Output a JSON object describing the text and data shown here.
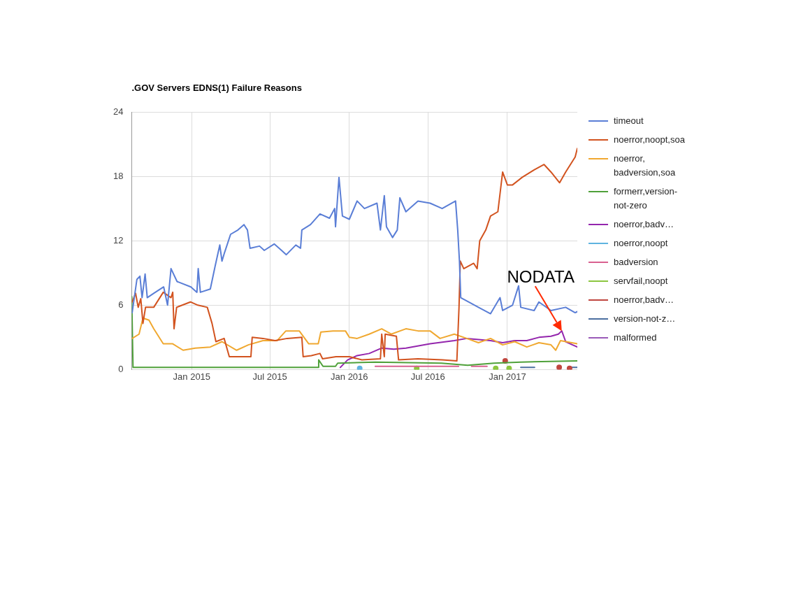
{
  "chart_data": {
    "type": "line",
    "title": ".GOV Servers EDNS(1) Failure Reasons",
    "xlim": [
      "2014-08-15",
      "2017-06-12"
    ],
    "xticks": [
      {
        "value": "2015-01-01",
        "label": "Jan 2015"
      },
      {
        "value": "2015-07-01",
        "label": "Jul 2015"
      },
      {
        "value": "2016-01-01",
        "label": "Jan 2016"
      },
      {
        "value": "2016-07-01",
        "label": "Jul 2016"
      },
      {
        "value": "2017-01-01",
        "label": "Jan 2017"
      }
    ],
    "ylim": [
      0,
      24
    ],
    "yticks": [
      0,
      6,
      12,
      18,
      24
    ],
    "grid": true,
    "legend": "right",
    "marker": "none",
    "annotations": [
      {
        "text": "NODATA",
        "x": "2017-05-07",
        "y": 3.6
      }
    ],
    "series": [
      {
        "name": "timeout",
        "color": "#5a7ed6",
        "x": [
          "2014-08-16",
          "2014-08-27",
          "2014-09-03",
          "2014-09-08",
          "2014-09-15",
          "2014-09-20",
          "2014-10-05",
          "2014-10-28",
          "2014-11-06",
          "2014-11-14",
          "2014-11-28",
          "2014-12-30",
          "2015-01-13",
          "2015-01-16",
          "2015-01-21",
          "2015-02-13",
          "2015-02-24",
          "2015-03-07",
          "2015-03-12",
          "2015-03-18",
          "2015-04-01",
          "2015-04-18",
          "2015-05-02",
          "2015-05-10",
          "2015-05-16",
          "2015-06-07",
          "2015-06-18",
          "2015-07-11",
          "2015-07-28",
          "2015-08-08",
          "2015-08-30",
          "2015-09-10",
          "2015-09-13",
          "2015-10-03",
          "2015-10-25",
          "2015-11-16",
          "2015-11-28",
          "2015-11-30",
          "2015-12-08",
          "2015-12-16",
          "2016-01-01",
          "2016-01-19",
          "2016-02-05",
          "2016-03-05",
          "2016-03-13",
          "2016-03-22",
          "2016-03-27",
          "2016-04-10",
          "2016-04-21",
          "2016-04-27",
          "2016-05-11",
          "2016-06-08",
          "2016-07-06",
          "2016-08-03",
          "2016-09-03",
          "2016-09-08",
          "2016-09-12",
          "2016-09-15",
          "2016-10-03",
          "2016-10-26",
          "2016-11-23",
          "2016-12-15",
          "2016-12-21",
          "2017-01-13",
          "2017-01-27",
          "2017-02-01",
          "2017-03-04",
          "2017-03-15",
          "2017-04-12",
          "2017-05-16",
          "2017-06-07",
          "2017-06-12"
        ],
        "values": [
          5.3,
          8.4,
          8.7,
          6.7,
          8.9,
          6.7,
          7.1,
          7.7,
          6.0,
          9.4,
          8.2,
          7.7,
          7.2,
          9.4,
          7.2,
          7.5,
          9.6,
          11.6,
          10.1,
          10.9,
          12.6,
          13.0,
          13.5,
          13.0,
          11.3,
          11.5,
          11.1,
          11.7,
          11.1,
          10.7,
          11.6,
          11.3,
          13.0,
          13.5,
          14.5,
          14.1,
          15.0,
          13.3,
          17.9,
          14.3,
          14.0,
          15.7,
          15.0,
          15.5,
          13.0,
          16.2,
          13.3,
          12.3,
          13.0,
          16.0,
          14.7,
          15.7,
          15.5,
          15.0,
          15.7,
          13.0,
          10.1,
          6.7,
          6.3,
          5.8,
          5.2,
          6.7,
          5.5,
          6.0,
          7.8,
          5.8,
          5.5,
          6.3,
          5.5,
          5.8,
          5.3,
          5.4
        ]
      },
      {
        "name": "noerror,noopt,soa",
        "color": "#d2531f",
        "x": [
          "2014-08-16",
          "2014-08-24",
          "2014-08-30",
          "2014-09-05",
          "2014-09-10",
          "2014-09-16",
          "2014-10-05",
          "2014-10-27",
          "2014-11-14",
          "2014-11-18",
          "2014-11-21",
          "2014-11-27",
          "2014-12-29",
          "2015-01-15",
          "2015-02-06",
          "2015-02-17",
          "2015-02-26",
          "2015-03-17",
          "2015-03-29",
          "2015-04-20",
          "2015-05-18",
          "2015-05-21",
          "2015-06-15",
          "2015-07-13",
          "2015-08-10",
          "2015-09-13",
          "2015-09-16",
          "2015-10-05",
          "2015-10-25",
          "2015-10-31",
          "2015-12-01",
          "2015-12-11",
          "2016-01-01",
          "2016-01-30",
          "2016-03-13",
          "2016-03-16",
          "2016-03-22",
          "2016-03-24",
          "2016-04-19",
          "2016-04-24",
          "2016-06-08",
          "2016-08-03",
          "2016-09-06",
          "2016-09-11",
          "2016-09-14",
          "2016-09-22",
          "2016-10-15",
          "2016-10-23",
          "2016-10-29",
          "2016-11-12",
          "2016-11-23",
          "2016-12-10",
          "2016-12-21",
          "2017-01-01",
          "2017-01-13",
          "2017-02-04",
          "2017-03-04",
          "2017-03-27",
          "2017-04-12",
          "2017-05-02",
          "2017-05-16",
          "2017-06-07",
          "2017-06-12"
        ],
        "values": [
          6.3,
          7.1,
          5.8,
          6.6,
          4.3,
          5.8,
          5.8,
          7.2,
          6.7,
          7.2,
          3.8,
          5.8,
          6.3,
          6.0,
          5.8,
          4.3,
          2.6,
          2.9,
          1.2,
          1.2,
          1.2,
          3.0,
          2.9,
          2.7,
          2.9,
          3.0,
          1.2,
          1.3,
          1.5,
          1.0,
          1.2,
          1.2,
          1.2,
          0.9,
          1.0,
          3.3,
          1.2,
          3.3,
          3.1,
          0.9,
          1.0,
          0.9,
          0.8,
          5.8,
          10.1,
          9.4,
          9.9,
          9.4,
          12.0,
          13.0,
          14.3,
          14.7,
          18.4,
          17.2,
          17.2,
          17.9,
          18.6,
          19.1,
          18.4,
          17.4,
          18.4,
          19.8,
          20.6
        ]
      },
      {
        "name": "noerror,badversion,soa",
        "color": "#f0a830",
        "x": [
          "2014-08-16",
          "2014-09-01",
          "2014-09-10",
          "2014-09-24",
          "2014-10-05",
          "2014-10-27",
          "2014-11-18",
          "2014-12-12",
          "2015-01-09",
          "2015-02-13",
          "2015-03-12",
          "2015-04-15",
          "2015-05-12",
          "2015-06-15",
          "2015-07-18",
          "2015-08-07",
          "2015-09-07",
          "2015-09-29",
          "2015-10-21",
          "2015-10-27",
          "2015-11-24",
          "2015-12-23",
          "2016-01-01",
          "2016-01-19",
          "2016-02-16",
          "2016-03-16",
          "2016-04-07",
          "2016-05-11",
          "2016-06-08",
          "2016-07-06",
          "2016-07-29",
          "2016-08-31",
          "2016-09-29",
          "2016-10-26",
          "2016-11-23",
          "2016-12-21",
          "2017-01-18",
          "2017-02-15",
          "2017-03-15",
          "2017-04-12",
          "2017-04-23",
          "2017-05-04",
          "2017-06-12"
        ],
        "values": [
          2.9,
          3.3,
          4.8,
          4.6,
          3.8,
          2.4,
          2.4,
          1.8,
          2.0,
          2.1,
          2.6,
          1.8,
          2.3,
          2.7,
          2.7,
          3.6,
          3.6,
          2.4,
          2.4,
          3.5,
          3.6,
          3.6,
          3.0,
          2.9,
          3.3,
          3.8,
          3.3,
          3.8,
          3.6,
          3.6,
          2.9,
          3.3,
          2.9,
          2.5,
          2.9,
          2.3,
          2.6,
          2.1,
          2.5,
          2.3,
          1.8,
          2.7,
          2.4
        ]
      },
      {
        "name": "formerr,version-not-zero",
        "color": "#4fa13a",
        "x": [
          "2014-08-15",
          "2014-08-18",
          "2015-10-21",
          "2015-10-22",
          "2015-11-01",
          "2015-11-30",
          "2015-12-05",
          "2016-03-01",
          "2016-08-01",
          "2016-10-01",
          "2016-12-01",
          "2017-02-01",
          "2017-06-12"
        ],
        "values": [
          6.8,
          0.2,
          0.2,
          0.9,
          0.3,
          0.3,
          0.6,
          0.7,
          0.6,
          0.4,
          0.6,
          0.7,
          0.8
        ]
      },
      {
        "name": "noerror,badv…",
        "color": "#9426ad",
        "x": [
          "2015-12-11",
          "2015-12-28",
          "2016-01-19",
          "2016-02-16",
          "2016-03-16",
          "2016-04-13",
          "2016-05-11",
          "2016-07-06",
          "2016-08-31",
          "2016-09-29",
          "2016-11-23",
          "2016-12-21",
          "2017-01-18",
          "2017-02-15",
          "2017-03-15",
          "2017-04-12",
          "2017-04-29",
          "2017-05-07",
          "2017-05-16",
          "2017-06-01",
          "2017-06-12"
        ],
        "values": [
          0.2,
          0.9,
          1.3,
          1.5,
          2.0,
          1.9,
          2.0,
          2.4,
          2.7,
          2.9,
          2.7,
          2.5,
          2.7,
          2.7,
          3.0,
          3.1,
          3.3,
          3.6,
          2.6,
          2.3,
          2.1
        ]
      },
      {
        "name": "noerror,noopt",
        "color": "#5fb4e0",
        "type": "scatter",
        "marker": "circle",
        "x": [
          "2016-01-25"
        ],
        "values": [
          0.1
        ]
      },
      {
        "name": "badversion",
        "color": "#d9608f",
        "x": [
          "2016-03-01",
          "2016-09-10",
          "2016-09-20",
          "2016-10-10",
          "2016-11-15"
        ],
        "values": [
          0.3,
          0.3,
          null,
          0.3,
          0.3
        ]
      },
      {
        "name": "servfail,noopt",
        "color": "#8cc63f",
        "type": "scatter",
        "marker": "circle",
        "x": [
          "2016-06-05",
          "2016-12-05",
          "2017-01-05"
        ],
        "values": [
          0.1,
          0.1,
          0.1
        ]
      },
      {
        "name": "noerror,badv…",
        "color": "#c0463f",
        "type": "scatter",
        "marker": "circle",
        "x": [
          "2016-12-27",
          "2017-05-01",
          "2017-05-25"
        ],
        "values": [
          0.8,
          0.2,
          0.1
        ]
      },
      {
        "name": "version-not-z…",
        "color": "#4c6fa0",
        "x": [
          "2017-02-01",
          "2017-03-05",
          "2017-03-20",
          "2017-05-25",
          "2017-06-12"
        ],
        "values": [
          0.2,
          0.2,
          null,
          0.2,
          0.2
        ]
      },
      {
        "name": "malformed",
        "color": "#9a5ab8"
      }
    ]
  }
}
